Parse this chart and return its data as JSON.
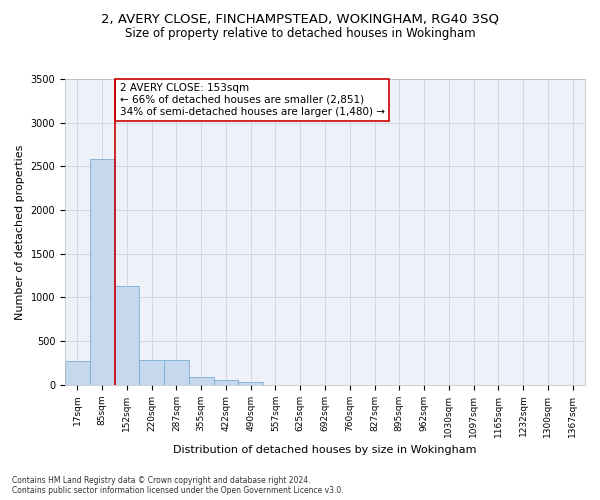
{
  "title_line1": "2, AVERY CLOSE, FINCHAMPSTEAD, WOKINGHAM, RG40 3SQ",
  "title_line2": "Size of property relative to detached houses in Wokingham",
  "xlabel": "Distribution of detached houses by size in Wokingham",
  "ylabel": "Number of detached properties",
  "bar_values": [
    275,
    2580,
    1130,
    285,
    285,
    95,
    60,
    35,
    0,
    0,
    0,
    0,
    0,
    0,
    0,
    0,
    0,
    0,
    0,
    0,
    0
  ],
  "bar_labels": [
    "17sqm",
    "85sqm",
    "152sqm",
    "220sqm",
    "287sqm",
    "355sqm",
    "422sqm",
    "490sqm",
    "557sqm",
    "625sqm",
    "692sqm",
    "760sqm",
    "827sqm",
    "895sqm",
    "962sqm",
    "1030sqm",
    "1097sqm",
    "1165sqm",
    "1232sqm",
    "1300sqm",
    "1367sqm"
  ],
  "bar_color": "#c5d8ed",
  "bar_edgecolor": "#7aadd4",
  "vline_x": 2,
  "vline_color": "#cc0000",
  "annotation_text": "2 AVERY CLOSE: 153sqm\n← 66% of detached houses are smaller (2,851)\n34% of semi-detached houses are larger (1,480) →",
  "annotation_box_color": "#cc0000",
  "ylim": [
    0,
    3500
  ],
  "yticks": [
    0,
    500,
    1000,
    1500,
    2000,
    2500,
    3000,
    3500
  ],
  "grid_color": "#d0d8e8",
  "background_color": "#eef2f8",
  "footer_text": "Contains HM Land Registry data © Crown copyright and database right 2024.\nContains public sector information licensed under the Open Government Licence v3.0.",
  "title_fontsize": 9.5,
  "subtitle_fontsize": 8.5,
  "tick_fontsize": 6.5,
  "ylabel_fontsize": 8,
  "xlabel_fontsize": 8,
  "annotation_fontsize": 7.5,
  "footer_fontsize": 5.5
}
